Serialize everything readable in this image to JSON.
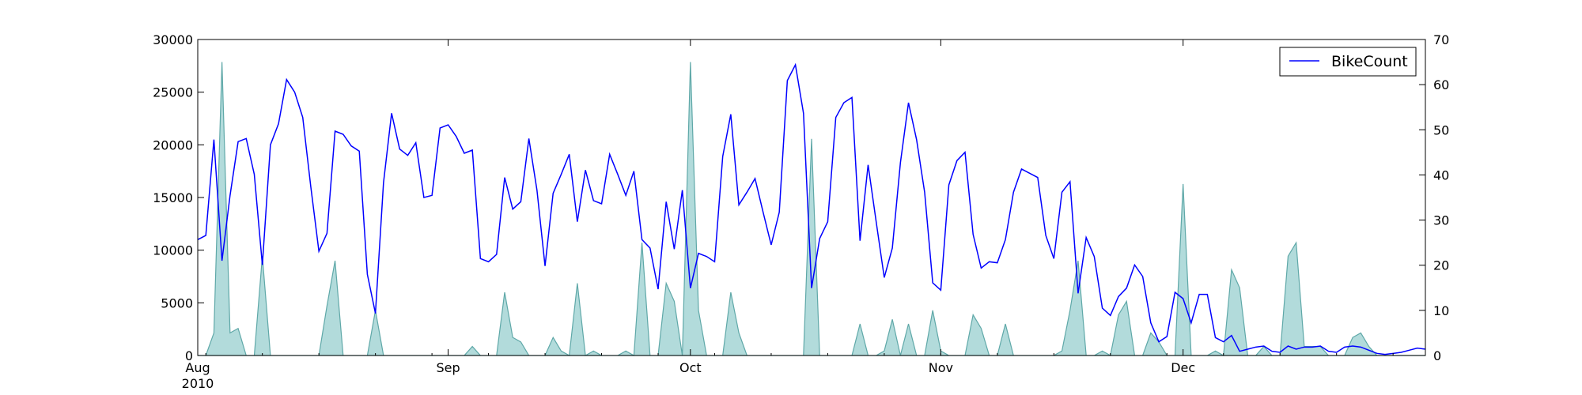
{
  "chart_data": {
    "type": "line",
    "x_start": "2010-08-01",
    "x_end": "2010-12-31",
    "x_ticks": [
      {
        "date": "2010-08-01",
        "label": "Aug",
        "sublabel": "2010"
      },
      {
        "date": "2010-09-01",
        "label": "Sep",
        "sublabel": ""
      },
      {
        "date": "2010-10-01",
        "label": "Oct",
        "sublabel": ""
      },
      {
        "date": "2010-11-01",
        "label": "Nov",
        "sublabel": ""
      },
      {
        "date": "2010-12-01",
        "label": "Dec",
        "sublabel": ""
      }
    ],
    "ylim_left": [
      0,
      30000
    ],
    "yticks_left": [
      0,
      5000,
      10000,
      15000,
      20000,
      25000,
      30000
    ],
    "ylim_right": [
      0,
      70
    ],
    "yticks_right": [
      0,
      10,
      20,
      30,
      40,
      50,
      60,
      70
    ],
    "legend_position": "top-right",
    "grid": false,
    "series": [
      {
        "name": "BikeCount",
        "axis": "left",
        "style": "line",
        "color": "#0000ff",
        "values": [
          [
            "2010-08-01",
            11000
          ],
          [
            "2010-08-02",
            11400
          ],
          [
            "2010-08-03",
            20500
          ],
          [
            "2010-08-04",
            9000
          ],
          [
            "2010-08-05",
            15200
          ],
          [
            "2010-08-06",
            20300
          ],
          [
            "2010-08-07",
            20600
          ],
          [
            "2010-08-08",
            17200
          ],
          [
            "2010-08-09",
            8600
          ],
          [
            "2010-08-10",
            20000
          ],
          [
            "2010-08-11",
            22000
          ],
          [
            "2010-08-12",
            26200
          ],
          [
            "2010-08-13",
            25000
          ],
          [
            "2010-08-14",
            22600
          ],
          [
            "2010-08-15",
            16000
          ],
          [
            "2010-08-16",
            9900
          ],
          [
            "2010-08-17",
            11600
          ],
          [
            "2010-08-18",
            21300
          ],
          [
            "2010-08-19",
            21000
          ],
          [
            "2010-08-20",
            19900
          ],
          [
            "2010-08-21",
            19400
          ],
          [
            "2010-08-22",
            7700
          ],
          [
            "2010-08-23",
            4000
          ],
          [
            "2010-08-24",
            16400
          ],
          [
            "2010-08-25",
            23000
          ],
          [
            "2010-08-26",
            19600
          ],
          [
            "2010-08-27",
            19000
          ],
          [
            "2010-08-28",
            20200
          ],
          [
            "2010-08-29",
            15000
          ],
          [
            "2010-08-30",
            15200
          ],
          [
            "2010-08-31",
            21600
          ],
          [
            "2010-09-01",
            21900
          ],
          [
            "2010-09-02",
            20800
          ],
          [
            "2010-09-03",
            19200
          ],
          [
            "2010-09-04",
            19500
          ],
          [
            "2010-09-05",
            9200
          ],
          [
            "2010-09-06",
            8900
          ],
          [
            "2010-09-07",
            9600
          ],
          [
            "2010-09-08",
            16900
          ],
          [
            "2010-09-09",
            13900
          ],
          [
            "2010-09-10",
            14600
          ],
          [
            "2010-09-11",
            20600
          ],
          [
            "2010-09-12",
            15700
          ],
          [
            "2010-09-13",
            8500
          ],
          [
            "2010-09-14",
            15400
          ],
          [
            "2010-09-15",
            17200
          ],
          [
            "2010-09-16",
            19100
          ],
          [
            "2010-09-17",
            12700
          ],
          [
            "2010-09-18",
            17600
          ],
          [
            "2010-09-19",
            14700
          ],
          [
            "2010-09-20",
            14400
          ],
          [
            "2010-09-21",
            19100
          ],
          [
            "2010-09-22",
            17200
          ],
          [
            "2010-09-23",
            15200
          ],
          [
            "2010-09-24",
            17500
          ],
          [
            "2010-09-25",
            11000
          ],
          [
            "2010-09-26",
            10200
          ],
          [
            "2010-09-27",
            6300
          ],
          [
            "2010-09-28",
            14600
          ],
          [
            "2010-09-29",
            10100
          ],
          [
            "2010-09-30",
            15700
          ],
          [
            "2010-10-01",
            6400
          ],
          [
            "2010-10-02",
            9700
          ],
          [
            "2010-10-03",
            9400
          ],
          [
            "2010-10-04",
            8900
          ],
          [
            "2010-10-05",
            18900
          ],
          [
            "2010-10-06",
            22900
          ],
          [
            "2010-10-07",
            14300
          ],
          [
            "2010-10-08",
            15500
          ],
          [
            "2010-10-09",
            16800
          ],
          [
            "2010-10-10",
            13600
          ],
          [
            "2010-10-11",
            10500
          ],
          [
            "2010-10-12",
            13600
          ],
          [
            "2010-10-13",
            26100
          ],
          [
            "2010-10-14",
            27600
          ],
          [
            "2010-10-15",
            23000
          ],
          [
            "2010-10-16",
            6400
          ],
          [
            "2010-10-17",
            11100
          ],
          [
            "2010-10-18",
            12700
          ],
          [
            "2010-10-19",
            22600
          ],
          [
            "2010-10-20",
            24000
          ],
          [
            "2010-10-21",
            24500
          ],
          [
            "2010-10-22",
            10900
          ],
          [
            "2010-10-23",
            18100
          ],
          [
            "2010-10-24",
            12700
          ],
          [
            "2010-10-25",
            7400
          ],
          [
            "2010-10-26",
            10200
          ],
          [
            "2010-10-27",
            18300
          ],
          [
            "2010-10-28",
            24000
          ],
          [
            "2010-10-29",
            20500
          ],
          [
            "2010-10-30",
            15500
          ],
          [
            "2010-10-31",
            6900
          ],
          [
            "2010-11-01",
            6200
          ],
          [
            "2010-11-02",
            16200
          ],
          [
            "2010-11-03",
            18500
          ],
          [
            "2010-11-04",
            19300
          ],
          [
            "2010-11-05",
            11500
          ],
          [
            "2010-11-06",
            8300
          ],
          [
            "2010-11-07",
            8900
          ],
          [
            "2010-11-08",
            8800
          ],
          [
            "2010-11-09",
            11000
          ],
          [
            "2010-11-10",
            15500
          ],
          [
            "2010-11-11",
            17700
          ],
          [
            "2010-11-12",
            17300
          ],
          [
            "2010-11-13",
            16900
          ],
          [
            "2010-11-14",
            11400
          ],
          [
            "2010-11-15",
            9200
          ],
          [
            "2010-11-16",
            15500
          ],
          [
            "2010-11-17",
            16500
          ],
          [
            "2010-11-18",
            5900
          ],
          [
            "2010-11-19",
            11200
          ],
          [
            "2010-11-20",
            9400
          ],
          [
            "2010-11-21",
            4500
          ],
          [
            "2010-11-22",
            3800
          ],
          [
            "2010-11-23",
            5600
          ],
          [
            "2010-11-24",
            6400
          ],
          [
            "2010-11-25",
            8600
          ],
          [
            "2010-11-26",
            7500
          ],
          [
            "2010-11-27",
            3100
          ],
          [
            "2010-11-28",
            1300
          ],
          [
            "2010-11-29",
            1800
          ],
          [
            "2010-11-30",
            6000
          ],
          [
            "2010-12-01",
            5400
          ],
          [
            "2010-12-02",
            3100
          ],
          [
            "2010-12-03",
            5800
          ],
          [
            "2010-12-04",
            5800
          ],
          [
            "2010-12-05",
            1700
          ],
          [
            "2010-12-06",
            1300
          ],
          [
            "2010-12-07",
            1900
          ],
          [
            "2010-12-08",
            400
          ],
          [
            "2010-12-09",
            600
          ],
          [
            "2010-12-10",
            800
          ],
          [
            "2010-12-11",
            900
          ],
          [
            "2010-12-12",
            400
          ],
          [
            "2010-12-13",
            300
          ],
          [
            "2010-12-14",
            900
          ],
          [
            "2010-12-15",
            600
          ],
          [
            "2010-12-16",
            800
          ],
          [
            "2010-12-17",
            800
          ],
          [
            "2010-12-18",
            900
          ],
          [
            "2010-12-19",
            400
          ],
          [
            "2010-12-20",
            300
          ],
          [
            "2010-12-21",
            800
          ],
          [
            "2010-12-22",
            900
          ],
          [
            "2010-12-23",
            800
          ],
          [
            "2010-12-24",
            500
          ],
          [
            "2010-12-25",
            200
          ],
          [
            "2010-12-26",
            100
          ],
          [
            "2010-12-27",
            200
          ],
          [
            "2010-12-28",
            300
          ],
          [
            "2010-12-29",
            500
          ],
          [
            "2010-12-30",
            700
          ],
          [
            "2010-12-31",
            600
          ]
        ]
      },
      {
        "name": "",
        "axis": "right",
        "style": "area",
        "color": "#b2dbdb",
        "edge_color": "#5fa8a8",
        "values": [
          [
            "2010-08-01",
            0
          ],
          [
            "2010-08-02",
            0
          ],
          [
            "2010-08-03",
            5
          ],
          [
            "2010-08-04",
            65
          ],
          [
            "2010-08-05",
            5
          ],
          [
            "2010-08-06",
            6
          ],
          [
            "2010-08-07",
            0
          ],
          [
            "2010-08-08",
            0
          ],
          [
            "2010-08-09",
            22
          ],
          [
            "2010-08-10",
            0
          ],
          [
            "2010-08-16",
            0
          ],
          [
            "2010-08-17",
            11
          ],
          [
            "2010-08-18",
            21
          ],
          [
            "2010-08-19",
            0
          ],
          [
            "2010-08-22",
            0
          ],
          [
            "2010-08-23",
            10
          ],
          [
            "2010-08-24",
            0
          ],
          [
            "2010-09-01",
            0
          ],
          [
            "2010-09-03",
            0
          ],
          [
            "2010-09-04",
            2
          ],
          [
            "2010-09-05",
            0
          ],
          [
            "2010-09-07",
            0
          ],
          [
            "2010-09-08",
            14
          ],
          [
            "2010-09-09",
            4
          ],
          [
            "2010-09-10",
            3
          ],
          [
            "2010-09-11",
            0
          ],
          [
            "2010-09-13",
            0
          ],
          [
            "2010-09-14",
            4
          ],
          [
            "2010-09-15",
            1
          ],
          [
            "2010-09-16",
            0
          ],
          [
            "2010-09-17",
            16
          ],
          [
            "2010-09-18",
            0
          ],
          [
            "2010-09-19",
            1
          ],
          [
            "2010-09-20",
            0
          ],
          [
            "2010-09-22",
            0
          ],
          [
            "2010-09-23",
            1
          ],
          [
            "2010-09-24",
            0
          ],
          [
            "2010-09-25",
            25
          ],
          [
            "2010-09-26",
            0
          ],
          [
            "2010-09-27",
            0
          ],
          [
            "2010-09-28",
            16
          ],
          [
            "2010-09-29",
            12
          ],
          [
            "2010-09-30",
            0
          ],
          [
            "2010-10-01",
            65
          ],
          [
            "2010-10-02",
            10
          ],
          [
            "2010-10-03",
            0
          ],
          [
            "2010-10-05",
            0
          ],
          [
            "2010-10-06",
            14
          ],
          [
            "2010-10-07",
            5
          ],
          [
            "2010-10-08",
            0
          ],
          [
            "2010-10-14",
            0
          ],
          [
            "2010-10-15",
            0
          ],
          [
            "2010-10-16",
            48
          ],
          [
            "2010-10-17",
            0
          ],
          [
            "2010-10-21",
            0
          ],
          [
            "2010-10-22",
            7
          ],
          [
            "2010-10-23",
            0
          ],
          [
            "2010-10-24",
            0
          ],
          [
            "2010-10-25",
            1
          ],
          [
            "2010-10-26",
            8
          ],
          [
            "2010-10-27",
            0
          ],
          [
            "2010-10-28",
            7
          ],
          [
            "2010-10-29",
            0
          ],
          [
            "2010-10-30",
            0
          ],
          [
            "2010-10-31",
            10
          ],
          [
            "2010-11-01",
            1
          ],
          [
            "2010-11-02",
            0
          ],
          [
            "2010-11-04",
            0
          ],
          [
            "2010-11-05",
            9
          ],
          [
            "2010-11-06",
            6
          ],
          [
            "2010-11-07",
            0
          ],
          [
            "2010-11-08",
            0
          ],
          [
            "2010-11-09",
            7
          ],
          [
            "2010-11-10",
            0
          ],
          [
            "2010-11-15",
            0
          ],
          [
            "2010-11-16",
            1
          ],
          [
            "2010-11-17",
            10
          ],
          [
            "2010-11-18",
            21
          ],
          [
            "2010-11-19",
            0
          ],
          [
            "2010-11-20",
            0
          ],
          [
            "2010-11-21",
            1
          ],
          [
            "2010-11-22",
            0
          ],
          [
            "2010-11-23",
            9
          ],
          [
            "2010-11-24",
            12
          ],
          [
            "2010-11-25",
            0
          ],
          [
            "2010-11-26",
            0
          ],
          [
            "2010-11-27",
            5
          ],
          [
            "2010-11-28",
            3
          ],
          [
            "2010-11-29",
            0
          ],
          [
            "2010-11-30",
            0
          ],
          [
            "2010-12-01",
            38
          ],
          [
            "2010-12-02",
            0
          ],
          [
            "2010-12-04",
            0
          ],
          [
            "2010-12-05",
            1
          ],
          [
            "2010-12-06",
            0
          ],
          [
            "2010-12-07",
            19
          ],
          [
            "2010-12-08",
            15
          ],
          [
            "2010-12-09",
            0
          ],
          [
            "2010-12-10",
            0
          ],
          [
            "2010-12-11",
            2
          ],
          [
            "2010-12-12",
            0
          ],
          [
            "2010-12-13",
            0
          ],
          [
            "2010-12-14",
            22
          ],
          [
            "2010-12-15",
            25
          ],
          [
            "2010-12-16",
            2
          ],
          [
            "2010-12-17",
            2
          ],
          [
            "2010-12-18",
            2
          ],
          [
            "2010-12-19",
            0
          ],
          [
            "2010-12-21",
            0
          ],
          [
            "2010-12-22",
            4
          ],
          [
            "2010-12-23",
            5
          ],
          [
            "2010-12-24",
            2
          ],
          [
            "2010-12-25",
            0
          ],
          [
            "2010-12-31",
            0
          ]
        ]
      }
    ]
  }
}
